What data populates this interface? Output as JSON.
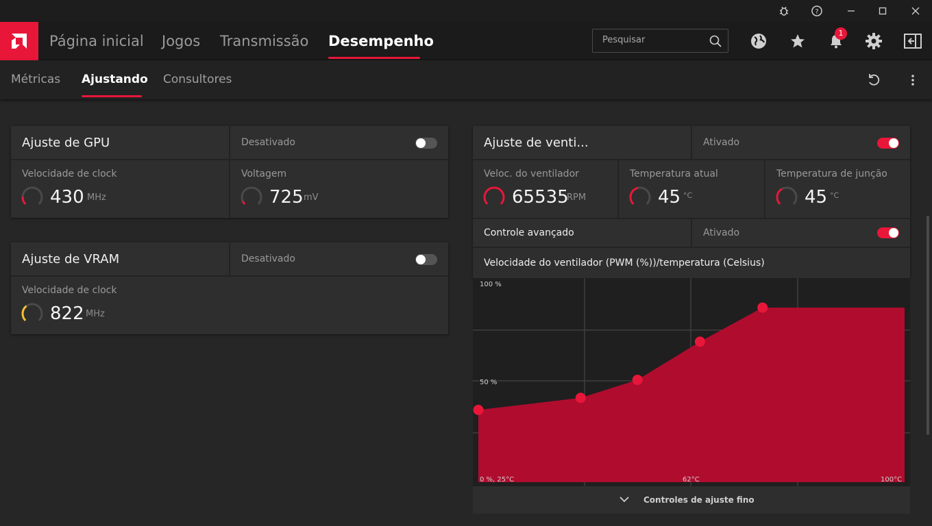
{
  "header": {
    "nav": [
      "Página inicial",
      "Jogos",
      "Transmissão",
      "Desempenho"
    ],
    "search_placeholder": "Pesquisar",
    "notification_count": "1",
    "accent": "#e8173a"
  },
  "subnav": {
    "tabs": [
      "Métricas",
      "Ajustando",
      "Consultores"
    ]
  },
  "gpu": {
    "title": "Ajuste de GPU",
    "state": "Desativado",
    "enabled": false,
    "clock_label": "Velocidade de clock",
    "clock_value": "430",
    "clock_unit": "MHz",
    "voltage_label": "Voltagem",
    "voltage_value": "725",
    "voltage_unit": "mV"
  },
  "vram": {
    "title": "Ajuste de VRAM",
    "state": "Desativado",
    "enabled": false,
    "clock_label": "Velocidade de clock",
    "clock_value": "822",
    "clock_unit": "MHz"
  },
  "fan": {
    "title": "Ajuste de venti...",
    "state": "Ativado",
    "enabled": true,
    "speed_label": "Veloc. do ventilador",
    "speed_value": "65535",
    "speed_unit": "RPM",
    "temp_label": "Temperatura atual",
    "temp_value": "45",
    "temp_unit": "°C",
    "junction_label": "Temperatura de junção",
    "junction_value": "45",
    "junction_unit": "°C",
    "advanced_label": "Controle avançado",
    "advanced_state": "Ativado",
    "advanced_enabled": true,
    "curve_title": "Velocidade do ventilador (PWM (%))/temperatura (Celsius)",
    "fine_tune_label": "Controles de ajuste fino"
  },
  "chart_data": {
    "type": "area",
    "x": [
      25,
      43,
      53,
      64,
      75
    ],
    "values": [
      36,
      42,
      51,
      70,
      87
    ],
    "xlim": [
      25,
      100
    ],
    "ylim": [
      0,
      100
    ],
    "y_ticks": [
      "100 %",
      "50 %"
    ],
    "x_ticks": [
      "0 %, 25°C",
      "62°C",
      "100°C"
    ],
    "fill_color": "#b00c2e",
    "point_color": "#e8173a",
    "grid": true
  }
}
